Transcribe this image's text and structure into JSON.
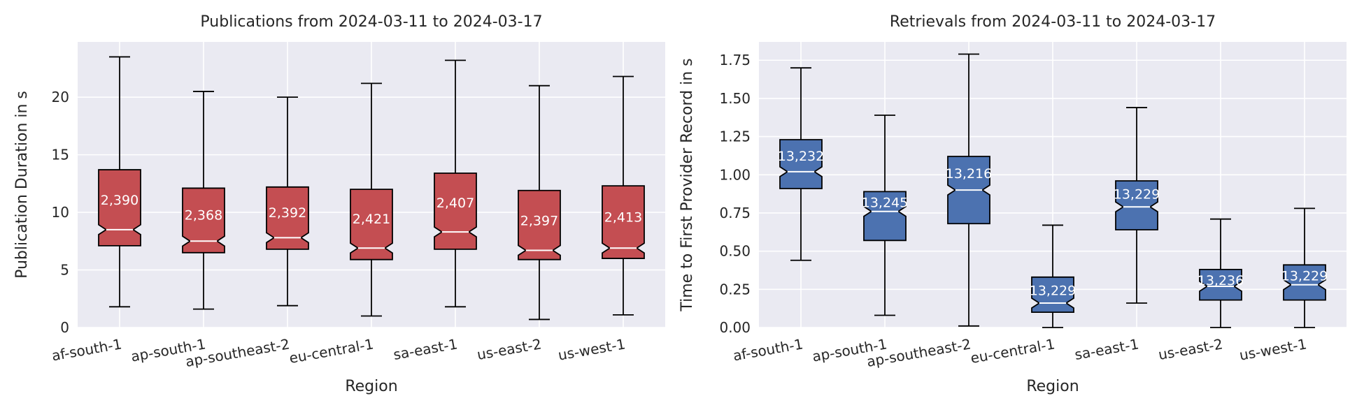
{
  "chart_data": [
    {
      "type": "box",
      "title": "Publications from 2024-03-11 to 2024-03-17",
      "xlabel": "Region",
      "ylabel": "Publication Duration in s",
      "ylim": [
        0,
        24.8
      ],
      "yticks": [
        0,
        5,
        10,
        15,
        20
      ],
      "notched": true,
      "box_color": "#c44e52",
      "median_color": "#ffffff",
      "background": "#eaeaf2",
      "grid": true,
      "categories": [
        "af-south-1",
        "ap-south-1",
        "ap-southeast-2",
        "eu-central-1",
        "sa-east-1",
        "us-east-2",
        "us-west-1"
      ],
      "boxes": [
        {
          "whislo": 1.8,
          "q1": 7.1,
          "med": 8.5,
          "q3": 13.7,
          "whishi": 23.5,
          "count_label": "2,390"
        },
        {
          "whislo": 1.6,
          "q1": 6.5,
          "med": 7.5,
          "q3": 12.1,
          "whishi": 20.5,
          "count_label": "2,368"
        },
        {
          "whislo": 1.9,
          "q1": 6.8,
          "med": 7.8,
          "q3": 12.2,
          "whishi": 20.0,
          "count_label": "2,392"
        },
        {
          "whislo": 1.0,
          "q1": 5.9,
          "med": 6.9,
          "q3": 12.0,
          "whishi": 21.2,
          "count_label": "2,421"
        },
        {
          "whislo": 1.8,
          "q1": 6.8,
          "med": 8.3,
          "q3": 13.4,
          "whishi": 23.2,
          "count_label": "2,407"
        },
        {
          "whislo": 0.7,
          "q1": 5.9,
          "med": 6.7,
          "q3": 11.9,
          "whishi": 21.0,
          "count_label": "2,397"
        },
        {
          "whislo": 1.1,
          "q1": 6.0,
          "med": 6.9,
          "q3": 12.3,
          "whishi": 21.8,
          "count_label": "2,413"
        }
      ]
    },
    {
      "type": "box",
      "title": "Retrievals from 2024-03-11 to 2024-03-17",
      "xlabel": "Region",
      "ylabel": "Time to First Provider Record in s",
      "ylim": [
        0,
        1.87
      ],
      "yticks": [
        0.0,
        0.25,
        0.5,
        0.75,
        1.0,
        1.25,
        1.5,
        1.75
      ],
      "ytick_labels": [
        "0.00",
        "0.25",
        "0.50",
        "0.75",
        "1.00",
        "1.25",
        "1.50",
        "1.75"
      ],
      "notched": true,
      "box_color": "#4c72b0",
      "median_color": "#ffffff",
      "background": "#eaeaf2",
      "grid": true,
      "categories": [
        "af-south-1",
        "ap-south-1",
        "ap-southeast-2",
        "eu-central-1",
        "sa-east-1",
        "us-east-2",
        "us-west-1"
      ],
      "boxes": [
        {
          "whislo": 0.44,
          "q1": 0.91,
          "med": 1.02,
          "q3": 1.23,
          "whishi": 1.7,
          "count_label": "13,232"
        },
        {
          "whislo": 0.08,
          "q1": 0.57,
          "med": 0.76,
          "q3": 0.89,
          "whishi": 1.39,
          "count_label": "13,245"
        },
        {
          "whislo": 0.01,
          "q1": 0.68,
          "med": 0.9,
          "q3": 1.12,
          "whishi": 1.79,
          "count_label": "13,216"
        },
        {
          "whislo": 0.0,
          "q1": 0.1,
          "med": 0.16,
          "q3": 0.33,
          "whishi": 0.67,
          "count_label": "13,229"
        },
        {
          "whislo": 0.16,
          "q1": 0.64,
          "med": 0.79,
          "q3": 0.96,
          "whishi": 1.44,
          "count_label": "13,229"
        },
        {
          "whislo": 0.0,
          "q1": 0.18,
          "med": 0.27,
          "q3": 0.38,
          "whishi": 0.71,
          "count_label": "13,236"
        },
        {
          "whislo": 0.0,
          "q1": 0.18,
          "med": 0.28,
          "q3": 0.41,
          "whishi": 0.78,
          "count_label": "13,229"
        }
      ]
    }
  ]
}
